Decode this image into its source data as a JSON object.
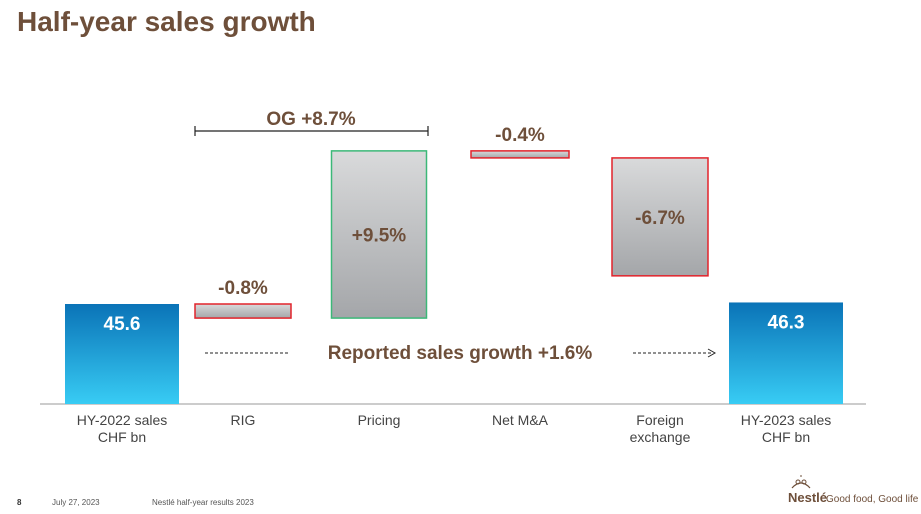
{
  "title": "Half-year sales growth",
  "chart_data": {
    "type": "waterfall",
    "unit": "CHF bn / %",
    "categories": [
      {
        "line1": "HY-2022 sales",
        "line2": "CHF bn"
      },
      {
        "line1": "RIG",
        "line2": ""
      },
      {
        "line1": "Pricing",
        "line2": ""
      },
      {
        "line1": "Net M&A",
        "line2": ""
      },
      {
        "line1": "Foreign",
        "line2": "exchange"
      },
      {
        "line1": "HY-2023 sales",
        "line2": "CHF bn"
      }
    ],
    "bars": [
      {
        "kind": "total",
        "value": 45.6,
        "label": "45.6"
      },
      {
        "kind": "change",
        "value": -0.8,
        "label": "-0.8%"
      },
      {
        "kind": "change",
        "value": 9.5,
        "label": "+9.5%"
      },
      {
        "kind": "change",
        "value": -0.4,
        "label": "-0.4%"
      },
      {
        "kind": "change",
        "value": -6.7,
        "label": "-6.7%"
      },
      {
        "kind": "total",
        "value": 46.3,
        "label": "46.3"
      }
    ],
    "annotations": {
      "organic_growth": "OG +8.7%",
      "reported_growth": "Reported sales growth +1.6%"
    },
    "colors": {
      "total_top": "#0a73b7",
      "total_bottom": "#38ccf4",
      "negative_border": "#e2232b",
      "positive_border": "#3cb878",
      "change_fill_light": "#d9dadb",
      "change_fill_dark": "#a4a6a9",
      "label": "#6e4f3a"
    }
  },
  "footer": {
    "page_number": "8",
    "date": "July 27, 2023",
    "document": "Nestlé half-year results 2023",
    "brand": "Nestlé",
    "tagline": "Good food, Good life"
  }
}
